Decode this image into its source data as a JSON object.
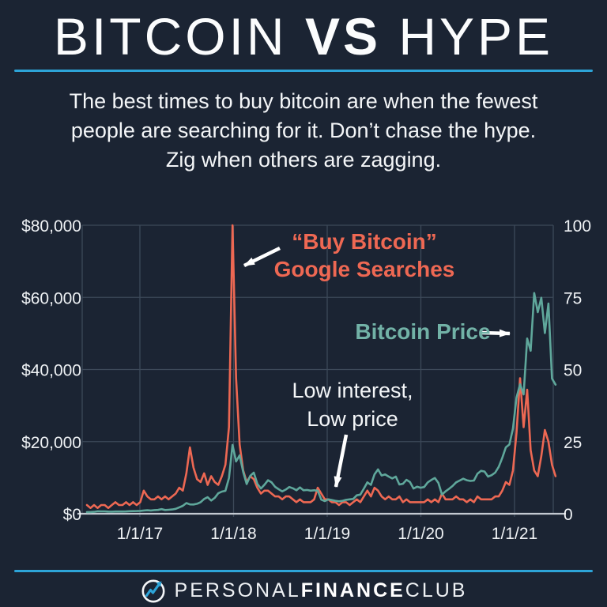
{
  "page": {
    "background_color": "#1b2433",
    "accent_blue": "#2da4d8"
  },
  "header": {
    "title_thin1": "BITCOIN",
    "title_bold": "VS",
    "title_thin2": "HYPE",
    "subtitle_lines": [
      "The best times to buy bitcoin are when the fewest",
      "people are searching for it. Don’t chase the hype.",
      "Zig when others are zagging."
    ]
  },
  "chart_data": {
    "type": "line",
    "x_axis": {
      "tick_labels": [
        "1/1/17",
        "1/1/18",
        "1/1/19",
        "1/1/20",
        "1/1/21"
      ],
      "tick_years": [
        2017,
        2018,
        2019,
        2020,
        2021
      ],
      "start_decimal_year": 2016.435,
      "step_years": 0.0379
    },
    "left_axis": {
      "tick_labels": [
        "$0",
        "$20,000",
        "$40,000",
        "$60,000",
        "$80,000"
      ],
      "min": 0,
      "max": 80000
    },
    "right_axis": {
      "tick_labels": [
        "0",
        "25",
        "50",
        "75",
        "100"
      ],
      "min": 0,
      "max": 100
    },
    "grid": true,
    "legend_position": "annotated-inline",
    "series": [
      {
        "name": "“Buy Bitcoin” Google Searches",
        "axis": "right",
        "color": "#ed6853",
        "values": [
          3,
          2,
          3,
          2,
          3,
          3,
          2,
          3,
          4,
          3,
          3,
          4,
          3,
          4,
          3,
          4,
          8,
          6,
          5,
          5,
          6,
          5,
          6,
          5,
          6,
          7,
          9,
          8,
          14,
          23,
          16,
          12,
          11,
          14,
          10,
          13,
          11,
          10,
          13,
          17,
          30,
          100,
          47,
          24,
          15,
          11,
          13,
          12,
          9,
          7,
          8,
          8,
          7,
          6,
          6,
          5,
          6,
          6,
          5,
          4,
          5,
          4,
          4,
          4,
          5,
          9,
          7,
          5,
          5,
          4,
          4,
          3,
          4,
          4,
          3,
          4,
          5,
          4,
          6,
          8,
          6,
          9,
          8,
          6,
          5,
          6,
          5,
          5,
          6,
          4,
          5,
          4,
          4,
          4,
          4,
          4,
          5,
          4,
          5,
          4,
          7,
          5,
          5,
          5,
          6,
          5,
          5,
          4,
          5,
          4,
          6,
          5,
          5,
          5,
          5,
          6,
          6,
          8,
          11,
          10,
          15,
          28,
          47,
          30,
          43,
          22,
          15,
          13,
          20,
          29,
          25,
          17,
          13
        ]
      },
      {
        "name": "Bitcoin Price",
        "axis": "left",
        "color": "#5fa79b",
        "values": [
          460,
          450,
          530,
          670,
          660,
          655,
          585,
          580,
          610,
          605,
          615,
          640,
          700,
          720,
          745,
          780,
          900,
          960,
          905,
          1010,
          1060,
          1270,
          1040,
          1100,
          1190,
          1350,
          1770,
          2190,
          2960,
          2590,
          2570,
          2760,
          3210,
          4100,
          4590,
          3670,
          4400,
          5680,
          6130,
          6350,
          9900,
          19100,
          14500,
          16200,
          11600,
          8250,
          10500,
          11400,
          8300,
          7000,
          8050,
          9300,
          8700,
          7450,
          6800,
          6200,
          6700,
          7400,
          7050,
          6500,
          7300,
          6500,
          6600,
          6400,
          6500,
          6400,
          3900,
          3500,
          4000,
          3800,
          3600,
          3450,
          3600,
          3850,
          4000,
          4100,
          5100,
          5300,
          7000,
          8700,
          8000,
          10900,
          12300,
          10600,
          10900,
          10300,
          9800,
          10300,
          8100,
          8300,
          9400,
          8800,
          7000,
          7500,
          7200,
          7400,
          8700,
          9350,
          9900,
          8550,
          5300,
          6200,
          6900,
          7700,
          8700,
          9200,
          9700,
          9300,
          9100,
          9200,
          11100,
          11900,
          11700,
          10300,
          10700,
          11400,
          13000,
          15500,
          18400,
          19200,
          23600,
          32200,
          35900,
          33100,
          48600,
          45200,
          61200,
          55900,
          59900,
          50100,
          58300,
          37500,
          35800
        ]
      }
    ],
    "annotations": [
      {
        "id": "searches",
        "line1": "“Buy Bitcoin”",
        "line2": "Google Searches",
        "color": "#ee6853"
      },
      {
        "id": "price",
        "line1": "Bitcoin Price",
        "line2": "",
        "color": "#72b2a7"
      },
      {
        "id": "low",
        "line1": "Low interest,",
        "line2": "Low price",
        "color": "#f4f6f8"
      }
    ],
    "style": {
      "gridline_color": "#3d4959",
      "axis_line_color": "#c3c9d1",
      "tick_label_color": "#eef1f4"
    }
  },
  "footer": {
    "brand_part1": "PERSONAL",
    "brand_part2": "FINANCE",
    "brand_part3": "CLUB"
  }
}
